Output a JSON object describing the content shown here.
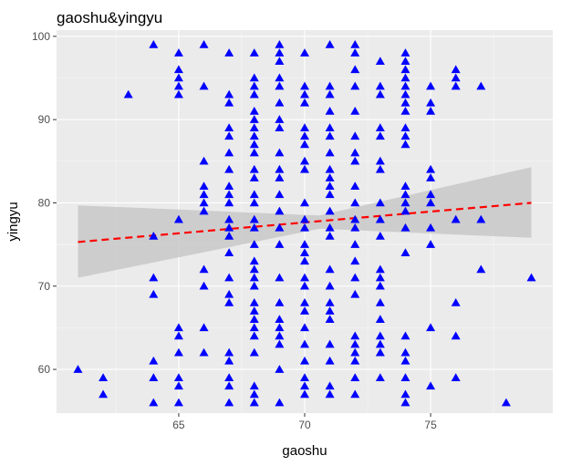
{
  "chart_data": {
    "type": "scatter",
    "title": "gaoshu&yingyu",
    "xlabel": "gaoshu",
    "ylabel": "yingyu",
    "xlim": [
      60.15,
      79.85
    ],
    "ylim": [
      54.75,
      100.75
    ],
    "x_ticks": [
      65,
      70,
      75
    ],
    "y_ticks": [
      60,
      70,
      80,
      90,
      100
    ],
    "x_tick_labels": [
      "65",
      "70",
      "75"
    ],
    "y_tick_labels": [
      "60",
      "70",
      "80",
      "90",
      "100"
    ],
    "grid": true,
    "legend": "none",
    "point_color": "#0000ff",
    "point_shape": "triangle",
    "trend_line": {
      "method": "linear",
      "color": "#ff0000",
      "style": "dashed",
      "x": [
        61,
        79
      ],
      "y": [
        75.3,
        80.0
      ],
      "ci_color": "#c8c8c8",
      "ci_lower": [
        71.0,
        75.8
      ],
      "ci_upper": [
        79.7,
        84.3
      ],
      "ci_x_mid": 70.6,
      "ci_mid": [
        76.9,
        78.5
      ]
    },
    "points": [
      [
        61,
        60
      ],
      [
        62,
        59
      ],
      [
        62,
        57
      ],
      [
        63,
        93
      ],
      [
        64,
        99
      ],
      [
        64,
        76
      ],
      [
        64,
        71
      ],
      [
        64,
        69
      ],
      [
        64,
        61
      ],
      [
        64,
        59
      ],
      [
        64,
        56
      ],
      [
        65,
        98
      ],
      [
        65,
        96
      ],
      [
        65,
        95
      ],
      [
        65,
        94
      ],
      [
        65,
        93
      ],
      [
        65,
        78
      ],
      [
        65,
        65
      ],
      [
        65,
        64
      ],
      [
        65,
        62
      ],
      [
        65,
        59
      ],
      [
        65,
        58
      ],
      [
        65,
        56
      ],
      [
        66,
        99
      ],
      [
        66,
        94
      ],
      [
        66,
        85
      ],
      [
        66,
        82
      ],
      [
        66,
        81
      ],
      [
        66,
        80
      ],
      [
        66,
        79
      ],
      [
        66,
        72
      ],
      [
        66,
        70
      ],
      [
        66,
        65
      ],
      [
        66,
        62
      ],
      [
        67,
        98
      ],
      [
        67,
        93
      ],
      [
        67,
        92
      ],
      [
        67,
        89
      ],
      [
        67,
        88
      ],
      [
        67,
        86
      ],
      [
        67,
        84
      ],
      [
        67,
        82
      ],
      [
        67,
        81
      ],
      [
        67,
        80
      ],
      [
        67,
        78
      ],
      [
        67,
        77
      ],
      [
        67,
        76
      ],
      [
        67,
        74
      ],
      [
        67,
        71
      ],
      [
        67,
        69
      ],
      [
        67,
        68
      ],
      [
        67,
        62
      ],
      [
        67,
        61
      ],
      [
        67,
        59
      ],
      [
        67,
        58
      ],
      [
        67,
        56
      ],
      [
        68,
        98
      ],
      [
        68,
        95
      ],
      [
        68,
        94
      ],
      [
        68,
        93
      ],
      [
        68,
        91
      ],
      [
        68,
        90
      ],
      [
        68,
        89
      ],
      [
        68,
        88
      ],
      [
        68,
        87
      ],
      [
        68,
        86
      ],
      [
        68,
        84
      ],
      [
        68,
        83
      ],
      [
        68,
        81
      ],
      [
        68,
        80
      ],
      [
        68,
        78
      ],
      [
        68,
        77
      ],
      [
        68,
        75
      ],
      [
        68,
        73
      ],
      [
        68,
        72
      ],
      [
        68,
        71
      ],
      [
        68,
        70
      ],
      [
        68,
        68
      ],
      [
        68,
        67
      ],
      [
        68,
        66
      ],
      [
        68,
        65
      ],
      [
        68,
        64
      ],
      [
        68,
        62
      ],
      [
        68,
        58
      ],
      [
        68,
        57
      ],
      [
        68,
        56
      ],
      [
        69,
        99
      ],
      [
        69,
        98
      ],
      [
        69,
        97
      ],
      [
        69,
        95
      ],
      [
        69,
        94
      ],
      [
        69,
        92
      ],
      [
        69,
        90
      ],
      [
        69,
        89
      ],
      [
        69,
        86
      ],
      [
        69,
        84
      ],
      [
        69,
        83
      ],
      [
        69,
        81
      ],
      [
        69,
        79
      ],
      [
        69,
        77
      ],
      [
        69,
        75
      ],
      [
        69,
        71
      ],
      [
        69,
        68
      ],
      [
        69,
        66
      ],
      [
        69,
        65
      ],
      [
        69,
        64
      ],
      [
        69,
        63
      ],
      [
        69,
        60
      ],
      [
        69,
        56
      ],
      [
        70,
        98
      ],
      [
        70,
        94
      ],
      [
        70,
        93
      ],
      [
        70,
        92
      ],
      [
        70,
        89
      ],
      [
        70,
        88
      ],
      [
        70,
        87
      ],
      [
        70,
        85
      ],
      [
        70,
        84
      ],
      [
        70,
        80
      ],
      [
        70,
        78
      ],
      [
        70,
        77
      ],
      [
        70,
        75
      ],
      [
        70,
        74
      ],
      [
        70,
        73
      ],
      [
        70,
        71
      ],
      [
        70,
        70
      ],
      [
        70,
        68
      ],
      [
        70,
        67
      ],
      [
        70,
        65
      ],
      [
        70,
        63
      ],
      [
        70,
        61
      ],
      [
        70,
        59
      ],
      [
        70,
        58
      ],
      [
        70,
        57
      ],
      [
        71,
        99
      ],
      [
        71,
        94
      ],
      [
        71,
        93
      ],
      [
        71,
        91
      ],
      [
        71,
        89
      ],
      [
        71,
        88
      ],
      [
        71,
        86
      ],
      [
        71,
        84
      ],
      [
        71,
        83
      ],
      [
        71,
        82
      ],
      [
        71,
        81
      ],
      [
        71,
        79
      ],
      [
        71,
        77
      ],
      [
        71,
        76
      ],
      [
        71,
        72
      ],
      [
        71,
        70
      ],
      [
        71,
        68
      ],
      [
        71,
        67
      ],
      [
        71,
        66
      ],
      [
        71,
        63
      ],
      [
        71,
        61
      ],
      [
        71,
        58
      ],
      [
        71,
        57
      ],
      [
        72,
        99
      ],
      [
        72,
        98
      ],
      [
        72,
        96
      ],
      [
        72,
        94
      ],
      [
        72,
        91
      ],
      [
        72,
        88
      ],
      [
        72,
        86
      ],
      [
        72,
        85
      ],
      [
        72,
        82
      ],
      [
        72,
        80
      ],
      [
        72,
        78
      ],
      [
        72,
        77
      ],
      [
        72,
        75
      ],
      [
        72,
        73
      ],
      [
        72,
        71
      ],
      [
        72,
        69
      ],
      [
        72,
        64
      ],
      [
        72,
        63
      ],
      [
        72,
        62
      ],
      [
        72,
        61
      ],
      [
        72,
        59
      ],
      [
        72,
        57
      ],
      [
        73,
        97
      ],
      [
        73,
        94
      ],
      [
        73,
        93
      ],
      [
        73,
        89
      ],
      [
        73,
        88
      ],
      [
        73,
        85
      ],
      [
        73,
        84
      ],
      [
        73,
        80
      ],
      [
        73,
        78
      ],
      [
        73,
        76
      ],
      [
        73,
        72
      ],
      [
        73,
        71
      ],
      [
        73,
        70
      ],
      [
        73,
        68
      ],
      [
        73,
        66
      ],
      [
        73,
        64
      ],
      [
        73,
        63
      ],
      [
        73,
        62
      ],
      [
        73,
        59
      ],
      [
        74,
        98
      ],
      [
        74,
        97
      ],
      [
        74,
        96
      ],
      [
        74,
        95
      ],
      [
        74,
        94
      ],
      [
        74,
        93
      ],
      [
        74,
        92
      ],
      [
        74,
        91
      ],
      [
        74,
        89
      ],
      [
        74,
        88
      ],
      [
        74,
        87
      ],
      [
        74,
        82
      ],
      [
        74,
        81
      ],
      [
        74,
        80
      ],
      [
        74,
        79
      ],
      [
        74,
        77
      ],
      [
        74,
        74
      ],
      [
        74,
        64
      ],
      [
        74,
        62
      ],
      [
        74,
        61
      ],
      [
        74,
        59
      ],
      [
        74,
        57
      ],
      [
        74,
        56
      ],
      [
        75,
        94
      ],
      [
        75,
        92
      ],
      [
        75,
        91
      ],
      [
        75,
        84
      ],
      [
        75,
        83
      ],
      [
        75,
        81
      ],
      [
        75,
        80
      ],
      [
        75,
        77
      ],
      [
        75,
        75
      ],
      [
        75,
        65
      ],
      [
        75,
        58
      ],
      [
        76,
        96
      ],
      [
        76,
        95
      ],
      [
        76,
        94
      ],
      [
        76,
        78
      ],
      [
        76,
        68
      ],
      [
        76,
        64
      ],
      [
        76,
        59
      ],
      [
        77,
        94
      ],
      [
        77,
        78
      ],
      [
        77,
        72
      ],
      [
        78,
        56
      ],
      [
        79,
        71
      ]
    ]
  }
}
